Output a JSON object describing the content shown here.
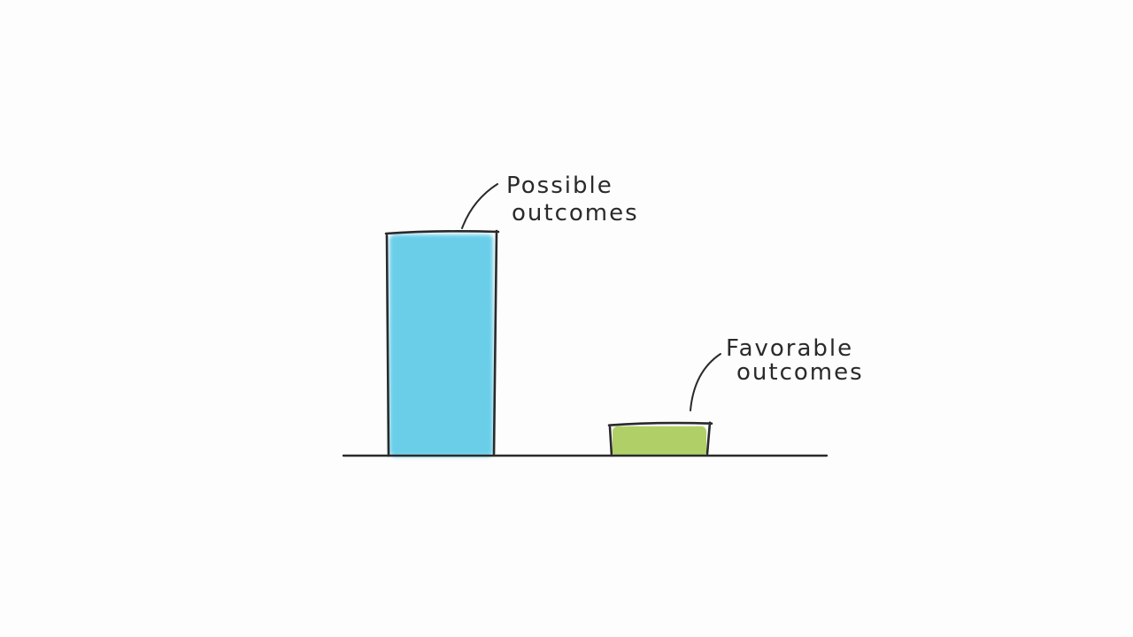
{
  "chart_data": {
    "type": "bar",
    "categories": [
      "possible",
      "favorable"
    ],
    "values": [
      100,
      14
    ],
    "ylim": [
      0,
      100
    ],
    "grid": false,
    "annotations": [
      {
        "text": [
          "Possible",
          "outcomes"
        ]
      },
      {
        "text": [
          "Favorable",
          "outcomes"
        ]
      }
    ],
    "colors": {
      "possible": "#5ecbe8",
      "favorable": "#a9cc5a",
      "outline": "#2a2a2a",
      "background": "#fdfdfd"
    }
  }
}
